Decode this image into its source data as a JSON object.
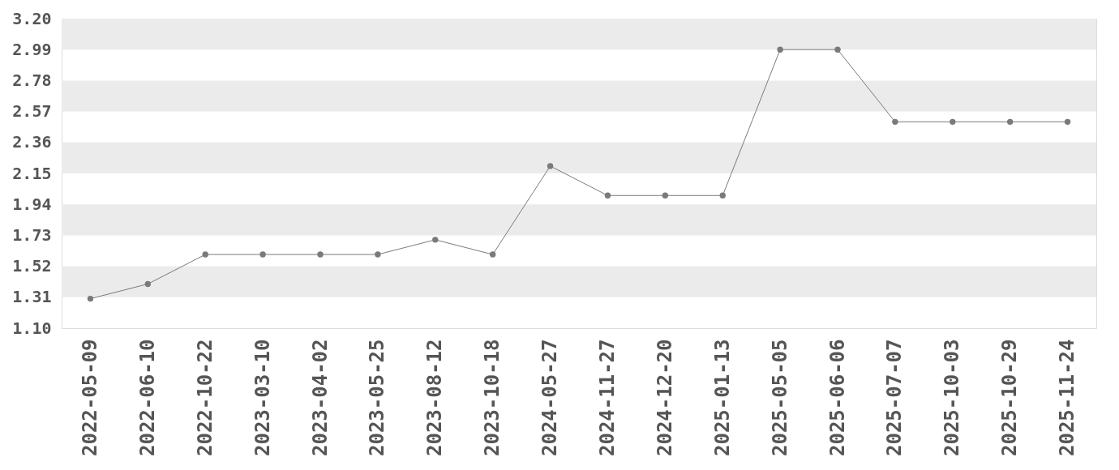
{
  "chart_data": {
    "type": "line",
    "categories": [
      "2022-05-09",
      "2022-06-10",
      "2022-10-22",
      "2023-03-10",
      "2023-04-02",
      "2023-05-25",
      "2023-08-12",
      "2023-10-18",
      "2024-05-27",
      "2024-11-27",
      "2024-12-20",
      "2025-01-13",
      "2025-05-05",
      "2025-06-06",
      "2025-07-07",
      "2025-10-03",
      "2025-10-29",
      "2025-11-24"
    ],
    "series": [
      {
        "color": "#7a7a7a",
        "values": [
          1.3,
          1.4,
          1.6,
          1.6,
          1.6,
          1.6,
          1.7,
          1.6,
          2.2,
          2.0,
          2.0,
          2.0,
          2.99,
          2.99,
          2.5,
          2.5,
          2.5,
          2.5
        ]
      }
    ],
    "ylim": [
      1.1,
      3.2
    ],
    "yticks": [
      {
        "value": 1.1,
        "label": "1.10"
      },
      1.31,
      1.52,
      1.73,
      1.94,
      2.15,
      2.36,
      2.57,
      2.78,
      2.99,
      {
        "value": 3.2,
        "label": "3.20"
      }
    ],
    "bands": [
      {
        "axis": "y",
        "from": 2.99,
        "to": 3.2,
        "color": "#ebebeb"
      },
      {
        "axis": "y",
        "from": 2.57,
        "to": 2.78,
        "color": "#ebebeb"
      },
      {
        "axis": "y",
        "from": 2.15,
        "to": 2.36,
        "color": "#ebebeb"
      },
      {
        "axis": "y",
        "from": 1.73,
        "to": 1.94,
        "color": "#ebebeb"
      },
      {
        "axis": "y",
        "from": 1.31,
        "to": 1.52,
        "color": "#ebebeb"
      }
    ],
    "marker": "circle",
    "line_style": "solid"
  }
}
